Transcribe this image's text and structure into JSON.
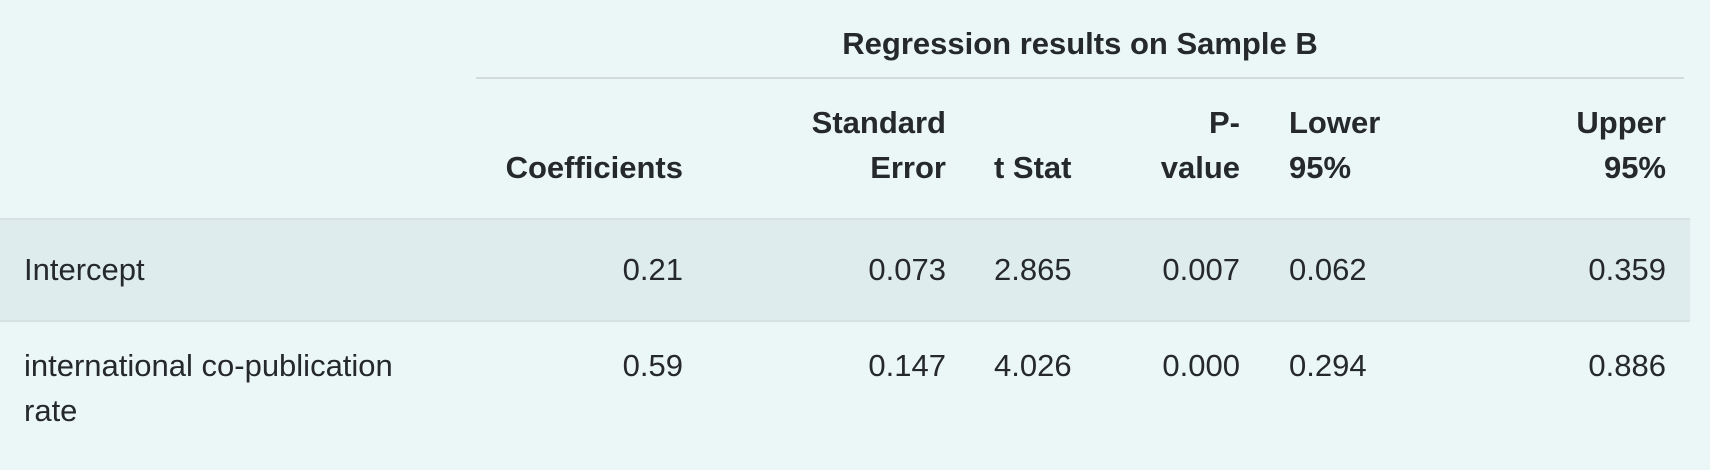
{
  "table": {
    "group_title": "Regression results on Sample B",
    "columns": {
      "coefficients": "Coefficients",
      "standard_error_l1": "Standard",
      "standard_error_l2": "Error",
      "t_stat": "t Stat",
      "p_value_l1": "P-",
      "p_value_l2": "value",
      "lower_l1": "Lower",
      "lower_l2": "95%",
      "upper_l1": "Upper",
      "upper_l2": "95%"
    },
    "rows": [
      {
        "label_l1": "Intercept",
        "label_l2": "",
        "coefficients": "0.21",
        "standard_error": "0.073",
        "t_stat": "2.865",
        "p_value": "0.007",
        "lower_95": "0.062",
        "upper_95": "0.359"
      },
      {
        "label_l1": "international co-publication",
        "label_l2": "rate",
        "coefficients": "0.59",
        "standard_error": "0.147",
        "t_stat": "4.026",
        "p_value": "0.000",
        "lower_95": "0.294",
        "upper_95": "0.886"
      }
    ]
  }
}
